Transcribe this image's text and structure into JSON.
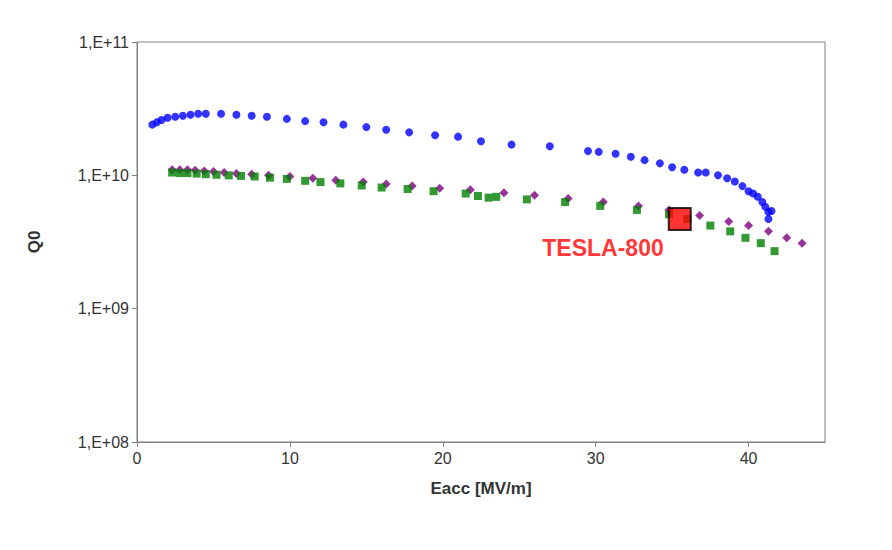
{
  "chart_data": {
    "type": "scatter",
    "x_label": "Eacc [MV/m]",
    "y_label": "Q0",
    "log": "y",
    "grid": false,
    "xlim": [
      0,
      45
    ],
    "xticks": [
      0,
      10,
      20,
      30,
      40
    ],
    "ylim": [
      100000000,
      100000000000
    ],
    "yticks": [
      {
        "value": 100000000,
        "label": "1,E+08"
      },
      {
        "value": 1000000000,
        "label": "1,E+09"
      },
      {
        "value": 10000000000,
        "label": "1,E+10"
      },
      {
        "value": 100000000000,
        "label": "1,E+11"
      }
    ],
    "series": [
      {
        "color": "#0000ff",
        "marker": "circle",
        "x": [
          1.0,
          1.3,
          1.6,
          2.0,
          2.5,
          3.0,
          3.5,
          4.0,
          4.5,
          5.5,
          6.5,
          7.5,
          8.5,
          9.8,
          11.0,
          12.2,
          13.5,
          15.0,
          16.3,
          17.8,
          19.5,
          21.0,
          22.5,
          24.5,
          27.0,
          29.5,
          30.2,
          31.3,
          32.3,
          33.2,
          34.2,
          35.0,
          35.8,
          36.7,
          37.2,
          38.0,
          38.6,
          39.1,
          39.6,
          40.0,
          40.3,
          40.6,
          40.9,
          41.1,
          41.3,
          41.3,
          41.5
        ],
        "values": [
          24000000000,
          25000000000,
          26000000000,
          27000000000,
          27500000000,
          28000000000,
          28500000000,
          29000000000,
          29000000000,
          29000000000,
          28500000000,
          28000000000,
          27500000000,
          26500000000,
          25500000000,
          25000000000,
          24000000000,
          23000000000,
          22000000000,
          21000000000,
          20000000000,
          19500000000,
          18000000000,
          17000000000,
          16500000000,
          15200000000,
          15000000000,
          14500000000,
          13800000000,
          13000000000,
          12300000000,
          11500000000,
          11000000000,
          10500000000,
          10500000000,
          10000000000,
          9500000000,
          9000000000,
          8300000000,
          7600000000,
          7300000000,
          6900000000,
          6300000000,
          5800000000,
          5300000000,
          4700000000,
          5400000000
        ]
      },
      {
        "color": "#800080",
        "marker": "diamond",
        "x": [
          2.3,
          2.8,
          3.3,
          3.8,
          4.4,
          5.0,
          5.7,
          6.5,
          7.5,
          8.6,
          10.0,
          11.5,
          13.0,
          14.8,
          16.3,
          18.0,
          19.8,
          21.8,
          24.0,
          26.0,
          28.2,
          30.5,
          32.8,
          34.8,
          36.8,
          38.7,
          40.0,
          41.3,
          42.5,
          43.5
        ],
        "values": [
          11000000000,
          11000000000,
          11000000000,
          10900000000,
          10800000000,
          10700000000,
          10500000000,
          10300000000,
          10200000000,
          10000000000,
          9800000000,
          9500000000,
          9200000000,
          8900000000,
          8600000000,
          8300000000,
          8000000000,
          7800000000,
          7400000000,
          7100000000,
          6700000000,
          6300000000,
          5900000000,
          5500000000,
          5000000000,
          4500000000,
          4200000000,
          3800000000,
          3400000000,
          3100000000
        ]
      },
      {
        "color": "#008000",
        "marker": "square",
        "x": [
          2.3,
          2.8,
          3.3,
          3.9,
          4.5,
          5.2,
          6.0,
          6.8,
          7.7,
          8.7,
          9.8,
          11.0,
          12.0,
          13.3,
          14.7,
          16.0,
          17.7,
          19.4,
          21.5,
          22.3,
          23.0,
          23.5,
          25.5,
          28.0,
          30.3,
          32.7,
          34.8,
          36.0,
          37.5,
          38.8,
          39.8,
          40.8,
          41.7
        ],
        "values": [
          10500000000,
          10400000000,
          10400000000,
          10300000000,
          10200000000,
          10100000000,
          10000000000,
          9900000000,
          9800000000,
          9600000000,
          9400000000,
          9100000000,
          8900000000,
          8700000000,
          8400000000,
          8100000000,
          7900000000,
          7600000000,
          7300000000,
          7000000000,
          6800000000,
          6900000000,
          6600000000,
          6300000000,
          5900000000,
          5500000000,
          5100000000,
          4700000000,
          4200000000,
          3800000000,
          3400000000,
          3100000000,
          2700000000
        ]
      }
    ],
    "annotations": [
      {
        "text": "TESLA-800",
        "x": 35.5,
        "y": 4700000000,
        "color": "#ff0000",
        "marker": "square"
      }
    ]
  }
}
